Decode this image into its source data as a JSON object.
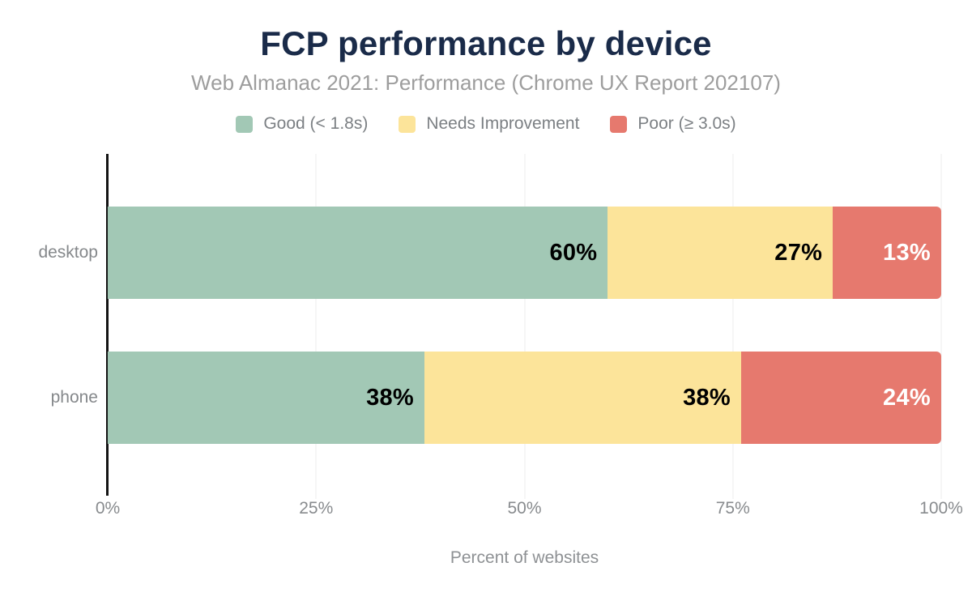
{
  "header": {
    "title": "FCP performance by device",
    "subtitle": "Web Almanac 2021: Performance (Chrome UX Report 202107)"
  },
  "chart_data": {
    "type": "bar",
    "orientation": "horizontal",
    "stacked": true,
    "title": "FCP performance by device",
    "subtitle": "Web Almanac 2021: Performance (Chrome UX Report 202107)",
    "categories": [
      "desktop",
      "phone"
    ],
    "series": [
      {
        "key": "good",
        "name": "Good (< 1.8s)",
        "color": "#a2c8b5",
        "label_color": "#000000",
        "values": [
          60,
          38
        ]
      },
      {
        "key": "needs-improvement",
        "name": "Needs Improvement",
        "color": "#fce49a",
        "label_color": "#000000",
        "values": [
          27,
          38
        ]
      },
      {
        "key": "poor",
        "name": "Poor (≥ 3.0s)",
        "color": "#e6796e",
        "label_color": "#ffffff",
        "values": [
          13,
          24
        ]
      }
    ],
    "value_suffix": "%",
    "x_ticks": [
      "0%",
      "25%",
      "50%",
      "75%",
      "100%"
    ],
    "x_tick_values": [
      0,
      25,
      50,
      75,
      100
    ],
    "xlabel": "Percent of websites",
    "ylabel": "",
    "xlim": [
      0,
      100
    ],
    "grid": true,
    "legend_position": "top"
  },
  "style_colors": {
    "title": "#1a2b49",
    "subtitle": "#9d9d9d",
    "legend_text": "#7c8084",
    "axis_text": "#85888b",
    "gridline": "#ededed",
    "axis_line": "#141414",
    "background": "#ffffff"
  }
}
